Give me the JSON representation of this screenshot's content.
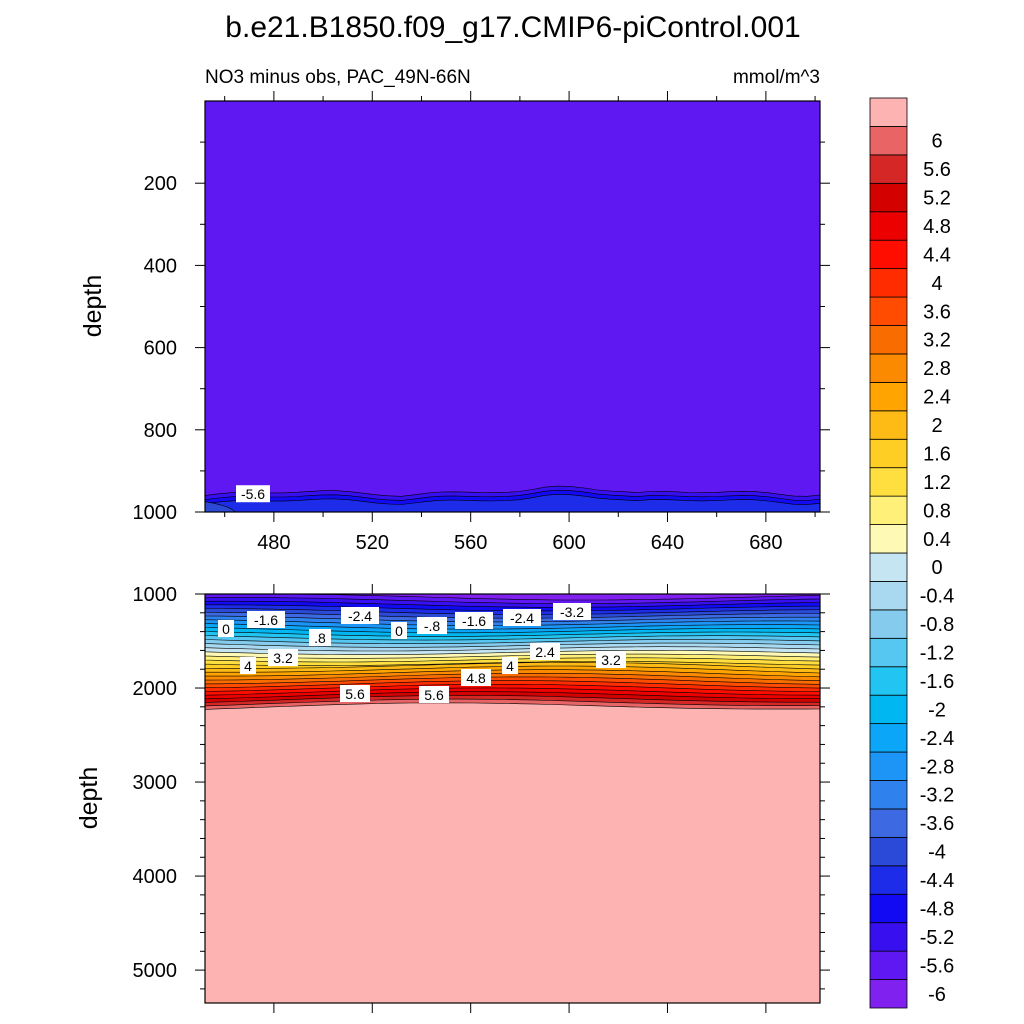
{
  "chart_data": {
    "type": "contour",
    "title": "b.e21.B1850.f09_g17.CMIP6-piControl.001",
    "subtitle_left": "NO3 minus obs, PAC_49N-66N",
    "subtitle_right": "mmol/m^3",
    "colorbar": {
      "levels": [
        "-6",
        "-5.6",
        "-5.2",
        "-4.8",
        "-4.4",
        "-4",
        "-3.6",
        "-3.2",
        "-2.8",
        "-2.4",
        "-2",
        "-1.6",
        "-1.2",
        "-0.8",
        "-0.4",
        "0",
        "0.4",
        "0.8",
        "1.2",
        "1.6",
        "2",
        "2.4",
        "2.8",
        "3.2",
        "3.6",
        "4",
        "4.4",
        "4.8",
        "5.2",
        "5.6",
        "6"
      ],
      "colors": [
        "#8021ef",
        "#5f18f2",
        "#3810ef",
        "#120af2",
        "#1d2ce8",
        "#2c4ad8",
        "#3d6ae2",
        "#2f82ee",
        "#1c95f6",
        "#0ba6f7",
        "#00b7f1",
        "#22c4f2",
        "#56c7f1",
        "#84cbee",
        "#a9d9f0",
        "#c6e5f3",
        "#fff9b6",
        "#fff07a",
        "#ffdf40",
        "#ffce25",
        "#ffbb15",
        "#ffa400",
        "#fc8a00",
        "#f96d00",
        "#ff4c00",
        "#ff2c00",
        "#ff0e00",
        "#ec0000",
        "#d40101",
        "#d62727",
        "#e96464",
        "#feb3b3"
      ]
    },
    "top_panel": {
      "xlabel": "",
      "ylabel": "depth",
      "x_range": [
        452,
        702
      ],
      "x_ticks": [
        "480",
        "520",
        "560",
        "600",
        "640",
        "680"
      ],
      "y_range": [
        0,
        1000
      ],
      "y_ticks": [
        "200",
        "400",
        "600",
        "800",
        "1000"
      ],
      "background_value": -6,
      "contour_labels": [
        "-5.6"
      ]
    },
    "bottom_panel": {
      "xlabel": "",
      "ylabel": "depth",
      "x_range": [
        452,
        702
      ],
      "y_range": [
        1000,
        5350
      ],
      "y_ticks": [
        "1000",
        "2000",
        "3000",
        "4000",
        "5000"
      ],
      "background_value": 6,
      "contour_labels": [
        "0",
        "-1.6",
        ".8",
        "-2.4",
        "0",
        "-.8",
        "-1.6",
        "-2.4",
        "-3.2",
        "4",
        "3.2",
        "2.4",
        "3.2",
        "4.8",
        "4",
        "5.6",
        "5.6"
      ]
    }
  }
}
